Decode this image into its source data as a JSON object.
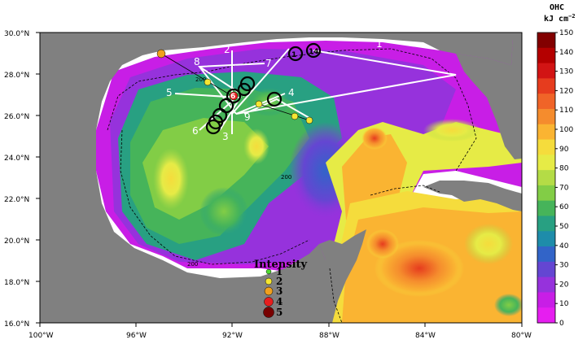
{
  "map": {
    "lat_labels": [
      "30.0°N",
      "28.0°N",
      "26.0°N",
      "24.0°N",
      "22.0°N",
      "20.0°N",
      "18.0°N",
      "16.0°N"
    ],
    "lon_labels": [
      "100°W",
      "96°W",
      "92°W",
      "88°W",
      "84°W",
      "80°W"
    ],
    "isobath_label": "200",
    "land_color": "#808080",
    "water_nodata_color": "#ffffff"
  },
  "colorbar": {
    "title_line1": "OHC",
    "title_line2": "kJ cm",
    "title_sup": "−2",
    "ticks": [
      "150",
      "140",
      "130",
      "120",
      "110",
      "100",
      "90",
      "80",
      "70",
      "60",
      "50",
      "40",
      "30",
      "20",
      "10",
      "0"
    ],
    "colors": [
      "#820000",
      "#b40000",
      "#d21414",
      "#e63c1e",
      "#f06428",
      "#f58c2d",
      "#fab432",
      "#f5dc3c",
      "#e6eb46",
      "#b4dc46",
      "#82cd46",
      "#46b45a",
      "#28a082",
      "#1e8caa",
      "#3264c8",
      "#6446d2",
      "#9632dc",
      "#c81ee6",
      "#e61ef0"
    ]
  },
  "legend": {
    "title": "Intensity",
    "items": [
      {
        "label": "1",
        "color": "#50dc32"
      },
      {
        "label": "2",
        "color": "#f5e632"
      },
      {
        "label": "3",
        "color": "#f0a01e"
      },
      {
        "label": "4",
        "color": "#e61e1e"
      },
      {
        "label": "5",
        "color": "#780000"
      }
    ]
  },
  "track_labels": [
    "1",
    "2",
    "3",
    "4",
    "5",
    "6",
    "7",
    "8",
    "9"
  ],
  "cyclone_circle_labels": [
    "1",
    "1",
    "14",
    "6"
  ]
}
